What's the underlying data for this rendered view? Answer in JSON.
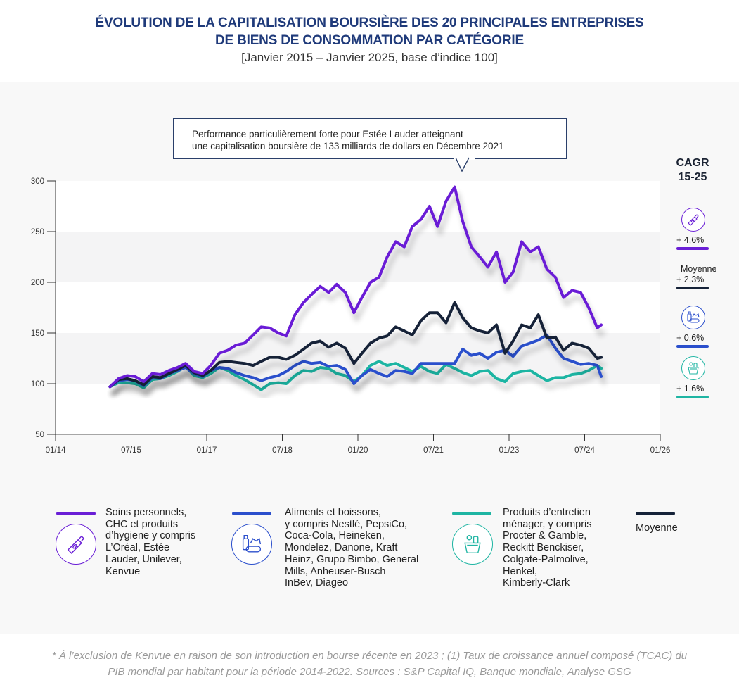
{
  "header": {
    "title_line1": "ÉVOLUTION DE LA CAPITALISATION BOURSIÈRE DES 20 PRINCIPALES ENTREPRISES",
    "title_line2": "DE BIENS DE CONSOMMATION PAR CATÉGORIE",
    "subtitle": "[Janvier 2015 – Janvier 2025, base d’indice 100]"
  },
  "callout": {
    "line1": "Performance particulièrement forte pour Estée Lauder atteignant",
    "line2": "une capitalisation boursière de 133 milliards de dollars en Décembre 2021"
  },
  "cagr": {
    "title_line1": "CAGR",
    "title_line2": "15-25",
    "items": [
      {
        "series": "soins",
        "label": "",
        "value": "+ 4,6%",
        "icon": "cosmetic-tube-icon"
      },
      {
        "series": "moyenne",
        "label": "Moyenne",
        "value": "+ 2,3%",
        "icon": ""
      },
      {
        "series": "aliments",
        "label": "",
        "value": "+ 0,6%",
        "icon": "food-beverage-icon"
      },
      {
        "series": "entretien",
        "label": "",
        "value": "+ 1,6%",
        "icon": "cleaning-bucket-icon"
      }
    ]
  },
  "legend": [
    {
      "series": "soins",
      "text": "Soins personnels,\nCHC et produits\nd’hygiene y compris\nL’Oréal, Estée\nLauder, Unilever,\nKenvue",
      "icon": "cosmetic-tube-icon"
    },
    {
      "series": "aliments",
      "text": "Aliments et boissons,\ny compris Nestlé, PepsiCo,\nCoca-Cola, Heineken,\nMondelez, Danone, Kraft\nHeinz, Grupo Bimbo, General\nMills, Anheuser-Busch\nInBev, Diageo",
      "icon": "food-beverage-icon"
    },
    {
      "series": "entretien",
      "text": "Produits d’entretien\nménager, y compris\nProcter & Gamble,\nReckitt Benckiser,\nColgate-Palmolive,\nHenkel,\nKimberly-Clark",
      "icon": "cleaning-bucket-icon"
    },
    {
      "series": "moyenne",
      "text": "Moyenne",
      "icon": ""
    }
  ],
  "colors": {
    "soins": "#6a1fd6",
    "aliments": "#2b4fcc",
    "entretien": "#1fb5a3",
    "moyenne": "#152238",
    "title": "#1f3a7a"
  },
  "footnote": {
    "line1": "* À l’exclusion de Kenvue en raison de son introduction en bourse récente en 2023 ; (1) Taux de croissance annuel composé (TCAC) du",
    "line2": "PIB mondial par habitant pour la période 2014-2022. Sources : S&P Capital IQ, Banque mondiale, Analyse GSG"
  },
  "chart_data": {
    "type": "line",
    "title": "Évolution de la capitalisation boursière des 20 principales entreprises de biens de consommation par catégorie",
    "subtitle": "Janvier 2015 – Janvier 2025, base d’indice 100",
    "xlabel": "",
    "ylabel": "",
    "x_unit": "decimal year",
    "xlim": [
      2014.0,
      2026.0
    ],
    "ylim": [
      50,
      300
    ],
    "yticks": [
      50,
      100,
      150,
      200,
      250,
      300
    ],
    "xticks": [
      {
        "value": 2014.0,
        "label": "01/14"
      },
      {
        "value": 2015.5,
        "label": "07/15"
      },
      {
        "value": 2017.0,
        "label": "01/17"
      },
      {
        "value": 2018.5,
        "label": "07/18"
      },
      {
        "value": 2020.0,
        "label": "01/20"
      },
      {
        "value": 2021.5,
        "label": "07/21"
      },
      {
        "value": 2023.0,
        "label": "01/23"
      },
      {
        "value": 2024.5,
        "label": "07/24"
      },
      {
        "value": 2026.0,
        "label": "01/26"
      }
    ],
    "grid": "horizontal bands",
    "legend_position": "bottom",
    "x": [
      2015.08,
      2015.25,
      2015.42,
      2015.58,
      2015.75,
      2015.92,
      2016.08,
      2016.25,
      2016.42,
      2016.58,
      2016.75,
      2016.92,
      2017.08,
      2017.25,
      2017.42,
      2017.58,
      2017.75,
      2017.92,
      2018.08,
      2018.25,
      2018.42,
      2018.58,
      2018.75,
      2018.92,
      2019.08,
      2019.25,
      2019.42,
      2019.58,
      2019.75,
      2019.92,
      2020.08,
      2020.25,
      2020.42,
      2020.58,
      2020.75,
      2020.92,
      2021.08,
      2021.25,
      2021.42,
      2021.58,
      2021.75,
      2021.92,
      2022.08,
      2022.25,
      2022.42,
      2022.58,
      2022.75,
      2022.92,
      2023.08,
      2023.25,
      2023.42,
      2023.58,
      2023.75,
      2023.92,
      2024.08,
      2024.25,
      2024.42,
      2024.58,
      2024.75,
      2024.83
    ],
    "series": [
      {
        "name": "Soins personnels, CHC et produits d’hygiène",
        "key": "soins",
        "values": [
          97,
          105,
          108,
          107,
          102,
          110,
          109,
          113,
          116,
          120,
          112,
          110,
          118,
          130,
          133,
          138,
          140,
          148,
          156,
          155,
          150,
          147,
          168,
          180,
          188,
          196,
          190,
          198,
          190,
          170,
          185,
          200,
          205,
          225,
          240,
          235,
          255,
          262,
          275,
          255,
          280,
          294,
          260,
          235,
          225,
          215,
          230,
          200,
          210,
          240,
          230,
          235,
          213,
          205,
          185,
          192,
          190,
          175,
          155,
          158
        ]
      },
      {
        "name": "Aliments et boissons",
        "key": "aliments",
        "values": [
          97,
          103,
          104,
          103,
          98,
          106,
          105,
          110,
          113,
          116,
          110,
          107,
          113,
          116,
          115,
          111,
          108,
          106,
          103,
          106,
          108,
          112,
          118,
          122,
          120,
          121,
          117,
          118,
          114,
          100,
          108,
          114,
          110,
          107,
          113,
          112,
          110,
          120,
          120,
          120,
          120,
          120,
          134,
          128,
          130,
          125,
          131,
          133,
          127,
          137,
          140,
          143,
          148,
          135,
          125,
          122,
          119,
          120,
          118,
          107
        ]
      },
      {
        "name": "Produits d’entretien ménager",
        "key": "entretien",
        "values": [
          97,
          101,
          101,
          100,
          96,
          104,
          105,
          108,
          112,
          117,
          108,
          106,
          110,
          116,
          113,
          108,
          104,
          99,
          94,
          100,
          101,
          100,
          108,
          113,
          112,
          116,
          115,
          110,
          108,
          102,
          108,
          118,
          122,
          118,
          120,
          116,
          112,
          117,
          112,
          110,
          119,
          115,
          111,
          108,
          112,
          113,
          105,
          102,
          110,
          112,
          113,
          108,
          103,
          106,
          106,
          109,
          110,
          113,
          118,
          115
        ]
      },
      {
        "name": "Moyenne",
        "key": "moyenne",
        "values": [
          97,
          104,
          105,
          103,
          99,
          107,
          106,
          110,
          114,
          118,
          111,
          108,
          113,
          121,
          122,
          121,
          120,
          118,
          122,
          126,
          126,
          124,
          128,
          134,
          140,
          142,
          136,
          140,
          135,
          120,
          130,
          140,
          145,
          147,
          156,
          152,
          148,
          162,
          170,
          170,
          160,
          180,
          165,
          155,
          152,
          150,
          158,
          130,
          142,
          158,
          155,
          168,
          145,
          146,
          133,
          140,
          138,
          135,
          125,
          126
        ]
      }
    ],
    "annotations": [
      {
        "text": "Performance particulièrement forte pour Estée Lauder atteignant une capitalisation boursière de 133 milliards de dollars en Décembre 2021",
        "x": 2021.92,
        "series": "soins"
      }
    ],
    "cagr_15_25": [
      {
        "series": "Soins personnels",
        "value": "+4,6%"
      },
      {
        "series": "Moyenne",
        "value": "+2,3%"
      },
      {
        "series": "Aliments et boissons",
        "value": "+0,6%"
      },
      {
        "series": "Produits d’entretien ménager",
        "value": "+1,6%"
      }
    ]
  }
}
